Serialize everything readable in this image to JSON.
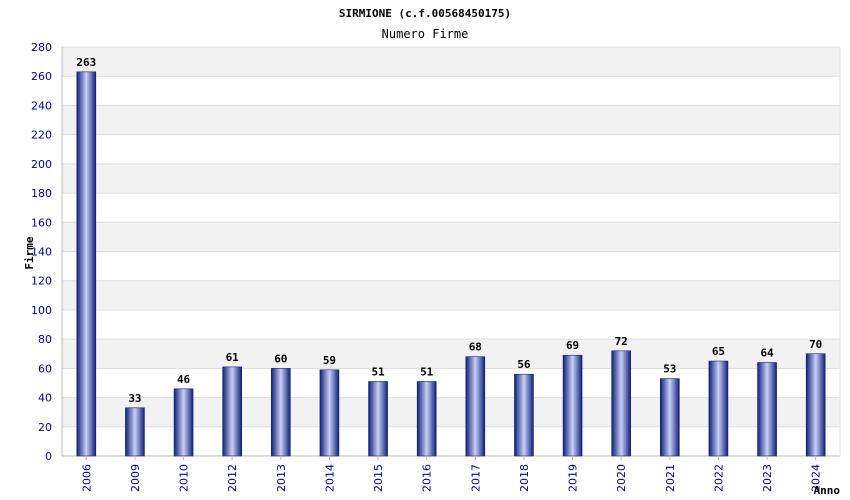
{
  "chart_data": {
    "type": "bar",
    "title": "SIRMIONE (c.f.00568450175)",
    "subtitle": "Numero Firme",
    "ylabel": "Firme",
    "xlabel": "Anno",
    "ylim": [
      0,
      280
    ],
    "ytick_step": 20,
    "grid": true,
    "categories": [
      "2006",
      "2009",
      "2010",
      "2012",
      "2013",
      "2014",
      "2015",
      "2016",
      "2017",
      "2018",
      "2019",
      "2020",
      "2021",
      "2022",
      "2023",
      "2024"
    ],
    "values": [
      263,
      33,
      46,
      61,
      60,
      59,
      51,
      51,
      68,
      56,
      69,
      72,
      53,
      65,
      64,
      70
    ]
  },
  "colors": {
    "bar_dark": "#101f7a",
    "bar_light": "#c8d0f5",
    "band": "#f2f2f2",
    "grid": "#dddddd",
    "tick_text": "#0000aa"
  }
}
